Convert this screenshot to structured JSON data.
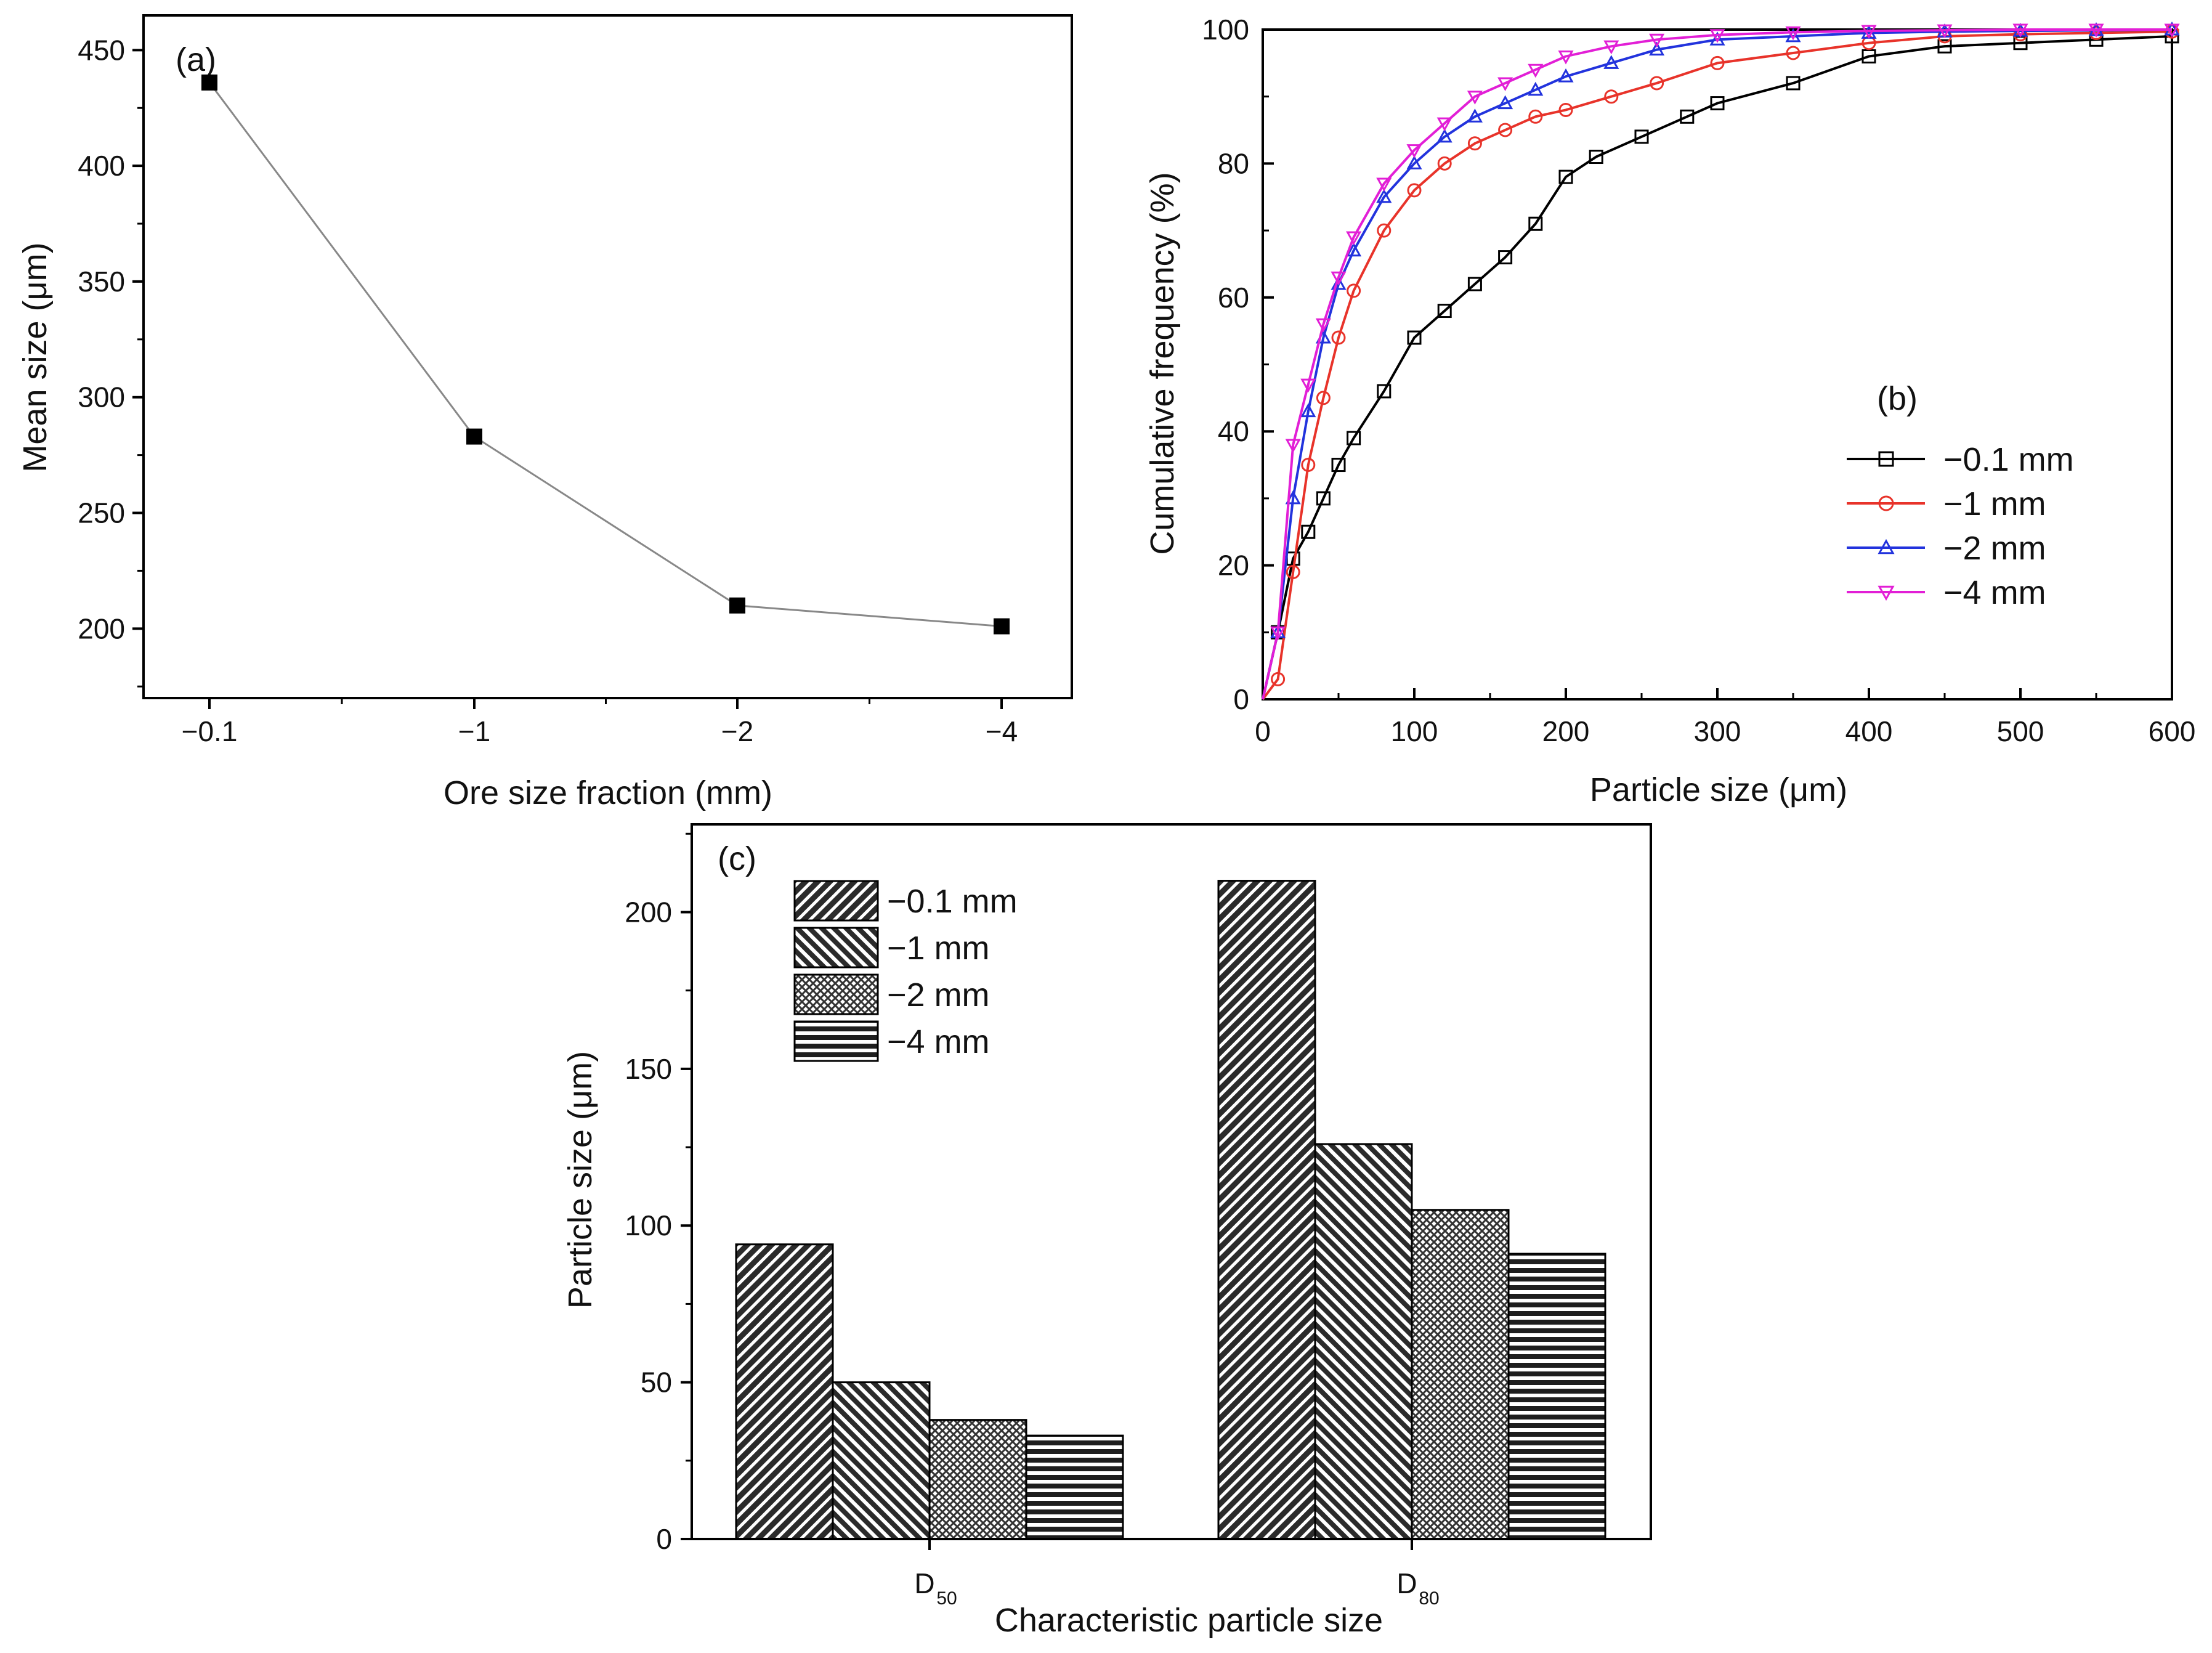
{
  "chart_data": [
    {
      "id": "a",
      "type": "line",
      "panel_label": "(a)",
      "xlabel": "Ore size fraction (mm)",
      "ylabel": "Mean size (μm)",
      "categories": [
        "−0.1",
        "−1",
        "−2",
        "−4"
      ],
      "values": [
        436,
        283,
        210,
        201
      ],
      "ylim": [
        170,
        465
      ],
      "yticks": [
        200,
        250,
        300,
        350,
        400,
        450
      ],
      "colors": {
        "line": "#888888",
        "marker": "#000000"
      }
    },
    {
      "id": "b",
      "type": "line",
      "panel_label": "(b)",
      "xlabel": "Particle size (μm)",
      "ylabel": "Cumulative frequency (%)",
      "xlim": [
        0,
        600
      ],
      "ylim": [
        0,
        100
      ],
      "xticks": [
        0,
        100,
        200,
        300,
        400,
        500,
        600
      ],
      "yticks": [
        0,
        20,
        40,
        60,
        80,
        100
      ],
      "legend_position": "right-center",
      "series": [
        {
          "name": "−0.1 mm",
          "color": "#000000",
          "marker": "square",
          "x": [
            0,
            10,
            20,
            30,
            40,
            50,
            60,
            80,
            100,
            120,
            140,
            160,
            180,
            200,
            220,
            250,
            280,
            300,
            350,
            400,
            450,
            500,
            550,
            600
          ],
          "y": [
            0,
            10,
            21,
            25,
            30,
            35,
            39,
            46,
            54,
            58,
            62,
            66,
            71,
            78,
            81,
            84,
            87,
            89,
            92,
            96,
            97.5,
            98,
            98.5,
            99
          ]
        },
        {
          "name": "−1 mm",
          "color": "#e8332a",
          "marker": "circle",
          "x": [
            0,
            10,
            20,
            30,
            40,
            50,
            60,
            80,
            100,
            120,
            140,
            160,
            180,
            200,
            230,
            260,
            300,
            350,
            400,
            450,
            500,
            550,
            600
          ],
          "y": [
            0,
            3,
            19,
            35,
            45,
            54,
            61,
            70,
            76,
            80,
            83,
            85,
            87,
            88,
            90,
            92,
            95,
            96.5,
            98,
            99,
            99.3,
            99.5,
            99.7
          ]
        },
        {
          "name": "−2 mm",
          "color": "#2233dd",
          "marker": "triangle-up",
          "x": [
            0,
            10,
            20,
            30,
            40,
            50,
            60,
            80,
            100,
            120,
            140,
            160,
            180,
            200,
            230,
            260,
            300,
            350,
            400,
            450,
            500,
            550,
            600
          ],
          "y": [
            0,
            10,
            30,
            43,
            54,
            62,
            67,
            75,
            80,
            84,
            87,
            89,
            91,
            93,
            95,
            97,
            98.5,
            99,
            99.5,
            99.7,
            99.8,
            99.9,
            100
          ]
        },
        {
          "name": "−4 mm",
          "color": "#e21fd6",
          "marker": "triangle-down",
          "x": [
            0,
            10,
            20,
            30,
            40,
            50,
            60,
            80,
            100,
            120,
            140,
            160,
            180,
            200,
            230,
            260,
            300,
            350,
            400,
            450,
            500,
            550,
            600
          ],
          "y": [
            0,
            10,
            38,
            47,
            56,
            63,
            69,
            77,
            82,
            86,
            90,
            92,
            94,
            96,
            97.5,
            98.5,
            99.2,
            99.6,
            99.8,
            99.9,
            100,
            100,
            100
          ]
        }
      ]
    },
    {
      "id": "c",
      "type": "bar",
      "panel_label": "(c)",
      "xlabel": "Characteristic particle size",
      "ylabel": "Particle size (μm)",
      "categories": [
        "D50",
        "D80"
      ],
      "category_main": [
        "D",
        "D"
      ],
      "category_sub": [
        "50",
        "80"
      ],
      "ylim": [
        0,
        228
      ],
      "yticks": [
        0,
        50,
        100,
        150,
        200
      ],
      "series": [
        {
          "name": "−0.1 mm",
          "pattern": "diag-right-dense",
          "values": [
            94,
            210
          ]
        },
        {
          "name": "−1 mm",
          "pattern": "diag-left",
          "values": [
            50,
            126
          ]
        },
        {
          "name": "−2 mm",
          "pattern": "crosshatch",
          "values": [
            38,
            105
          ]
        },
        {
          "name": "−4 mm",
          "pattern": "horizontal",
          "values": [
            33,
            91
          ]
        }
      ]
    }
  ]
}
